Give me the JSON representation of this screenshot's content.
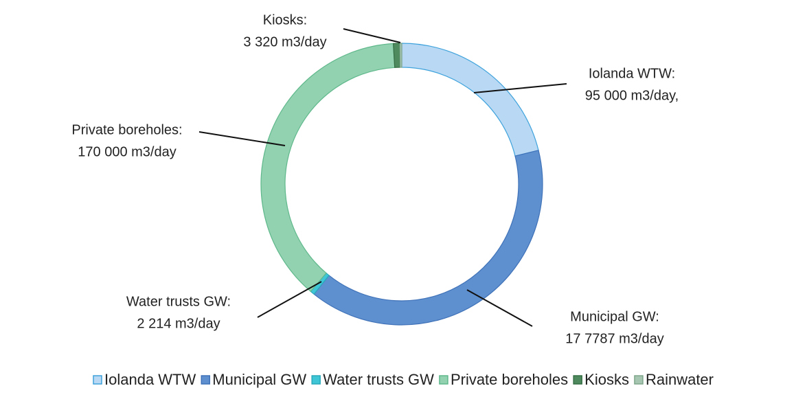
{
  "chart_data": {
    "type": "donut",
    "categories": [
      "Iolanda WTW",
      "Municipal GW",
      "Water trusts GW",
      "Private boreholes",
      "Kiosks",
      "Rainwater"
    ],
    "values": [
      95000,
      177787,
      2214,
      170000,
      3320,
      1000
    ],
    "slice_names": [
      "Iolanda WTW:",
      "Municipal GW:",
      "Water trusts GW:",
      "Private boreholes:",
      "Kiosks:",
      null
    ],
    "value_labels": [
      "95 000 m3/day,",
      "17 7787 m3/day",
      "2 214 m3/day",
      "170 000 m3/day",
      "3 320 m3/day",
      null
    ],
    "colors": [
      "#b9d8f3",
      "#5e8fcf",
      "#3fc6d6",
      "#92d2b0",
      "#4e8a5e",
      "#a7c6b2"
    ],
    "edge_colors": [
      "#3da2dc",
      "#3f72b8",
      "#2aa9ba",
      "#5fb88b",
      "#356e44",
      "#7ea68b"
    ],
    "legend": "bottom"
  }
}
